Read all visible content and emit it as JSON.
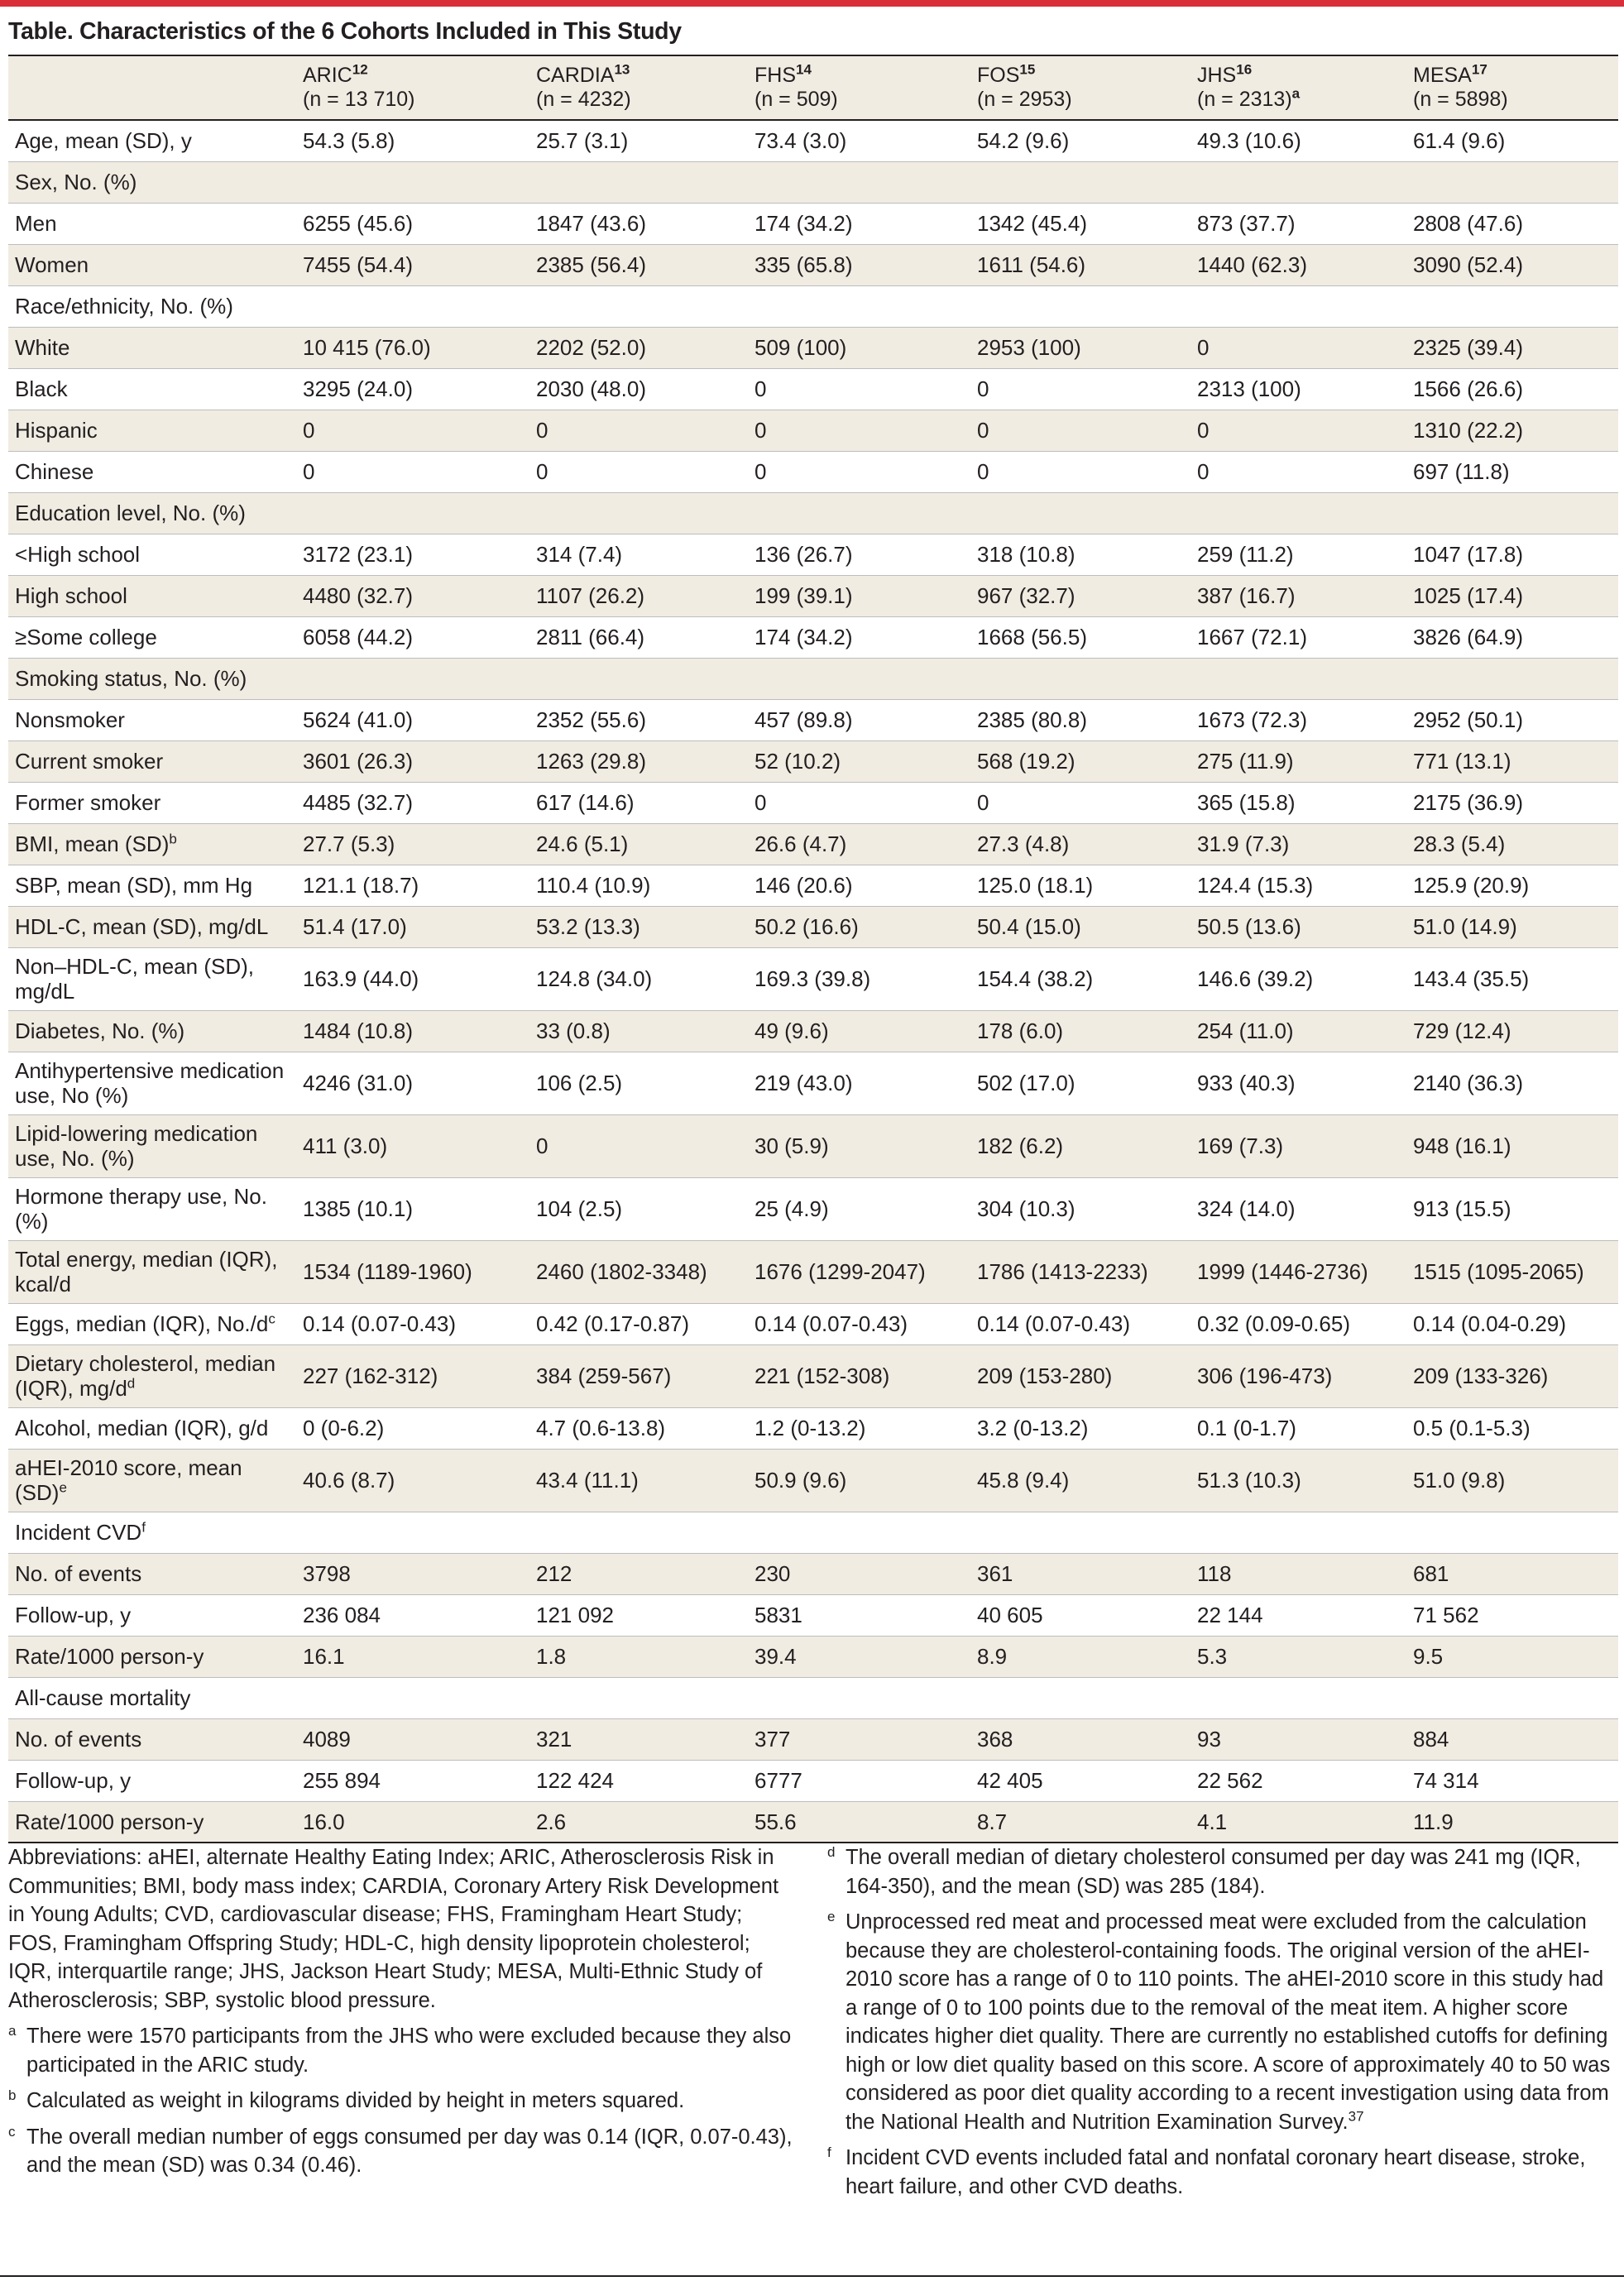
{
  "title": "Table. Characteristics of the 6 Cohorts Included in This Study",
  "colors": {
    "accent": "#d82f3b",
    "row_shade": "#f0ece2",
    "text": "#231f20"
  },
  "header": {
    "cohorts": [
      {
        "name": "ARIC",
        "ref": "12",
        "n": "(n = 13 710)",
        "note": ""
      },
      {
        "name": "CARDIA",
        "ref": "13",
        "n": "(n = 4232)",
        "note": ""
      },
      {
        "name": "FHS",
        "ref": "14",
        "n": "(n = 509)",
        "note": ""
      },
      {
        "name": "FOS",
        "ref": "15",
        "n": "(n = 2953)",
        "note": ""
      },
      {
        "name": "JHS",
        "ref": "16",
        "n": "(n = 2313)",
        "note": "a"
      },
      {
        "name": "MESA",
        "ref": "17",
        "n": "(n = 5898)",
        "note": ""
      }
    ]
  },
  "rows": [
    {
      "label": "Age, mean (SD), y",
      "values": [
        "54.3 (5.8)",
        "25.7 (3.1)",
        "73.4 (3.0)",
        "54.2 (9.6)",
        "49.3 (10.6)",
        "61.4 (9.6)"
      ]
    },
    {
      "label": "Sex, No. (%)",
      "values": [
        "",
        "",
        "",
        "",
        "",
        ""
      ]
    },
    {
      "label": "Men",
      "values": [
        "6255 (45.6)",
        "1847 (43.6)",
        "174 (34.2)",
        "1342 (45.4)",
        "873 (37.7)",
        "2808 (47.6)"
      ]
    },
    {
      "label": "Women",
      "values": [
        "7455 (54.4)",
        "2385 (56.4)",
        "335 (65.8)",
        "1611 (54.6)",
        "1440 (62.3)",
        "3090 (52.4)"
      ]
    },
    {
      "label": "Race/ethnicity, No. (%)",
      "values": [
        "",
        "",
        "",
        "",
        "",
        ""
      ]
    },
    {
      "label": "White",
      "values": [
        "10 415 (76.0)",
        "2202 (52.0)",
        "509 (100)",
        "2953 (100)",
        "0",
        "2325 (39.4)"
      ]
    },
    {
      "label": "Black",
      "values": [
        "3295 (24.0)",
        "2030 (48.0)",
        "0",
        "0",
        "2313 (100)",
        "1566 (26.6)"
      ]
    },
    {
      "label": "Hispanic",
      "values": [
        "0",
        "0",
        "0",
        "0",
        "0",
        "1310 (22.2)"
      ]
    },
    {
      "label": "Chinese",
      "values": [
        "0",
        "0",
        "0",
        "0",
        "0",
        "697 (11.8)"
      ]
    },
    {
      "label": "Education level, No. (%)",
      "values": [
        "",
        "",
        "",
        "",
        "",
        ""
      ]
    },
    {
      "label": "<High school",
      "values": [
        "3172 (23.1)",
        "314 (7.4)",
        "136 (26.7)",
        "318 (10.8)",
        "259 (11.2)",
        "1047 (17.8)"
      ]
    },
    {
      "label": "High school",
      "values": [
        "4480 (32.7)",
        "1107 (26.2)",
        "199 (39.1)",
        "967 (32.7)",
        "387 (16.7)",
        "1025 (17.4)"
      ]
    },
    {
      "label": "≥Some college",
      "values": [
        "6058 (44.2)",
        "2811 (66.4)",
        "174 (34.2)",
        "1668 (56.5)",
        "1667 (72.1)",
        "3826 (64.9)"
      ]
    },
    {
      "label": "Smoking status, No. (%)",
      "values": [
        "",
        "",
        "",
        "",
        "",
        ""
      ]
    },
    {
      "label": "Nonsmoker",
      "values": [
        "5624 (41.0)",
        "2352 (55.6)",
        "457 (89.8)",
        "2385 (80.8)",
        "1673 (72.3)",
        "2952 (50.1)"
      ]
    },
    {
      "label": "Current smoker",
      "values": [
        "3601 (26.3)",
        "1263 (29.8)",
        "52 (10.2)",
        "568 (19.2)",
        "275 (11.9)",
        "771 (13.1)"
      ]
    },
    {
      "label": "Former smoker",
      "values": [
        "4485 (32.7)",
        "617 (14.6)",
        "0",
        "0",
        "365 (15.8)",
        "2175 (36.9)"
      ]
    },
    {
      "label": "BMI, mean (SD)",
      "sup": "b",
      "values": [
        "27.7 (5.3)",
        "24.6 (5.1)",
        "26.6 (4.7)",
        "27.3 (4.8)",
        "31.9 (7.3)",
        "28.3 (5.4)"
      ]
    },
    {
      "label": "SBP, mean (SD), mm Hg",
      "values": [
        "121.1 (18.7)",
        "110.4 (10.9)",
        "146 (20.6)",
        "125.0 (18.1)",
        "124.4 (15.3)",
        "125.9 (20.9)"
      ]
    },
    {
      "label": "HDL-C, mean (SD), mg/dL",
      "values": [
        "51.4 (17.0)",
        "53.2 (13.3)",
        "50.2 (16.6)",
        "50.4 (15.0)",
        "50.5 (13.6)",
        "51.0 (14.9)"
      ]
    },
    {
      "label": "Non–HDL-C, mean (SD), mg/dL",
      "values": [
        "163.9 (44.0)",
        "124.8 (34.0)",
        "169.3 (39.8)",
        "154.4 (38.2)",
        "146.6 (39.2)",
        "143.4 (35.5)"
      ]
    },
    {
      "label": "Diabetes, No. (%)",
      "values": [
        "1484 (10.8)",
        "33 (0.8)",
        "49 (9.6)",
        "178 (6.0)",
        "254 (11.0)",
        "729 (12.4)"
      ]
    },
    {
      "label": "Antihypertensive medication use, No (%)",
      "values": [
        "4246 (31.0)",
        "106 (2.5)",
        "219 (43.0)",
        "502 (17.0)",
        "933 (40.3)",
        "2140 (36.3)"
      ]
    },
    {
      "label": "Lipid-lowering medication use, No. (%)",
      "values": [
        "411 (3.0)",
        "0",
        "30 (5.9)",
        "182 (6.2)",
        "169 (7.3)",
        "948 (16.1)"
      ]
    },
    {
      "label": "Hormone therapy use, No. (%)",
      "values": [
        "1385 (10.1)",
        "104 (2.5)",
        "25 (4.9)",
        "304 (10.3)",
        "324 (14.0)",
        "913 (15.5)"
      ]
    },
    {
      "label": "Total energy, median (IQR), kcal/d",
      "values": [
        "1534 (1189-1960)",
        "2460 (1802-3348)",
        "1676 (1299-2047)",
        "1786 (1413-2233)",
        "1999 (1446-2736)",
        "1515 (1095-2065)"
      ]
    },
    {
      "label": "Eggs, median (IQR), No./d",
      "sup": "c",
      "values": [
        "0.14 (0.07-0.43)",
        "0.42 (0.17-0.87)",
        "0.14 (0.07-0.43)",
        "0.14 (0.07-0.43)",
        "0.32 (0.09-0.65)",
        "0.14 (0.04-0.29)"
      ]
    },
    {
      "label": "Dietary cholesterol, median (IQR), mg/d",
      "sup": "d",
      "values": [
        "227 (162-312)",
        "384 (259-567)",
        "221 (152-308)",
        "209 (153-280)",
        "306 (196-473)",
        "209 (133-326)"
      ]
    },
    {
      "label": "Alcohol, median (IQR), g/d",
      "values": [
        "0 (0-6.2)",
        "4.7 (0.6-13.8)",
        "1.2 (0-13.2)",
        "3.2 (0-13.2)",
        "0.1 (0-1.7)",
        "0.5 (0.1-5.3)"
      ]
    },
    {
      "label": "aHEI-2010 score, mean (SD)",
      "sup": "e",
      "values": [
        "40.6 (8.7)",
        "43.4 (11.1)",
        "50.9 (9.6)",
        "45.8 (9.4)",
        "51.3 (10.3)",
        "51.0 (9.8)"
      ]
    },
    {
      "label": "Incident CVD",
      "sup": "f",
      "values": [
        "",
        "",
        "",
        "",
        "",
        ""
      ]
    },
    {
      "label": "No. of events",
      "values": [
        "3798",
        "212",
        "230",
        "361",
        "118",
        "681"
      ]
    },
    {
      "label": "Follow-up, y",
      "values": [
        "236 084",
        "121 092",
        "5831",
        "40 605",
        "22 144",
        "71 562"
      ]
    },
    {
      "label": "Rate/1000 person-y",
      "values": [
        "16.1",
        "1.8",
        "39.4",
        "8.9",
        "5.3",
        "9.5"
      ]
    },
    {
      "label": "All-cause mortality",
      "values": [
        "",
        "",
        "",
        "",
        "",
        ""
      ]
    },
    {
      "label": "No. of events",
      "values": [
        "4089",
        "321",
        "377",
        "368",
        "93",
        "884"
      ]
    },
    {
      "label": "Follow-up, y",
      "values": [
        "255 894",
        "122 424",
        "6777",
        "42 405",
        "22 562",
        "74 314"
      ]
    },
    {
      "label": "Rate/1000 person-y",
      "values": [
        "16.0",
        "2.6",
        "55.6",
        "8.7",
        "4.1",
        "11.9"
      ]
    }
  ],
  "notes": {
    "abbreviations": "Abbreviations: aHEI, alternate Healthy Eating Index; ARIC, Atherosclerosis Risk in Communities; BMI, body mass index; CARDIA, Coronary Artery Risk Development in Young Adults; CVD, cardiovascular disease; FHS, Framingham Heart Study; FOS, Framingham Offspring Study; HDL-C, high density lipoprotein cholesterol; IQR, interquartile range; JHS, Jackson Heart Study; MESA, Multi-Ethnic Study of Atherosclerosis; SBP, systolic blood pressure.",
    "footnotes_left": [
      {
        "mark": "a",
        "text": "There were 1570 participants from the JHS who were excluded because they also participated in the ARIC study."
      },
      {
        "mark": "b",
        "text": "Calculated as weight in kilograms divided by height in meters squared."
      },
      {
        "mark": "c",
        "text": "The overall median number of eggs consumed per day was 0.14 (IQR, 0.07-0.43), and the mean (SD) was 0.34 (0.46)."
      }
    ],
    "footnotes_right": [
      {
        "mark": "d",
        "text": "The overall median of dietary cholesterol consumed per day was 241 mg (IQR, 164-350), and the mean (SD) was 285 (184)."
      },
      {
        "mark": "e",
        "text": "Unprocessed red meat and processed meat were excluded from the calculation because they are cholesterol-containing foods. The original version of the aHEI-2010 score has a range of 0 to 110 points. The aHEI-2010 score in this study had a range of 0 to 100 points due to the removal of the meat item. A higher score indicates higher diet quality. There are currently no established cutoffs for defining high or low diet quality based on this score. A score of approximately 40 to 50 was considered as poor diet quality according to a recent investigation using data from the National Health and Nutrition Examination Survey.",
        "ref": "37"
      },
      {
        "mark": "f",
        "text": "Incident CVD events included fatal and nonfatal coronary heart disease, stroke, heart failure, and other CVD deaths."
      }
    ]
  }
}
